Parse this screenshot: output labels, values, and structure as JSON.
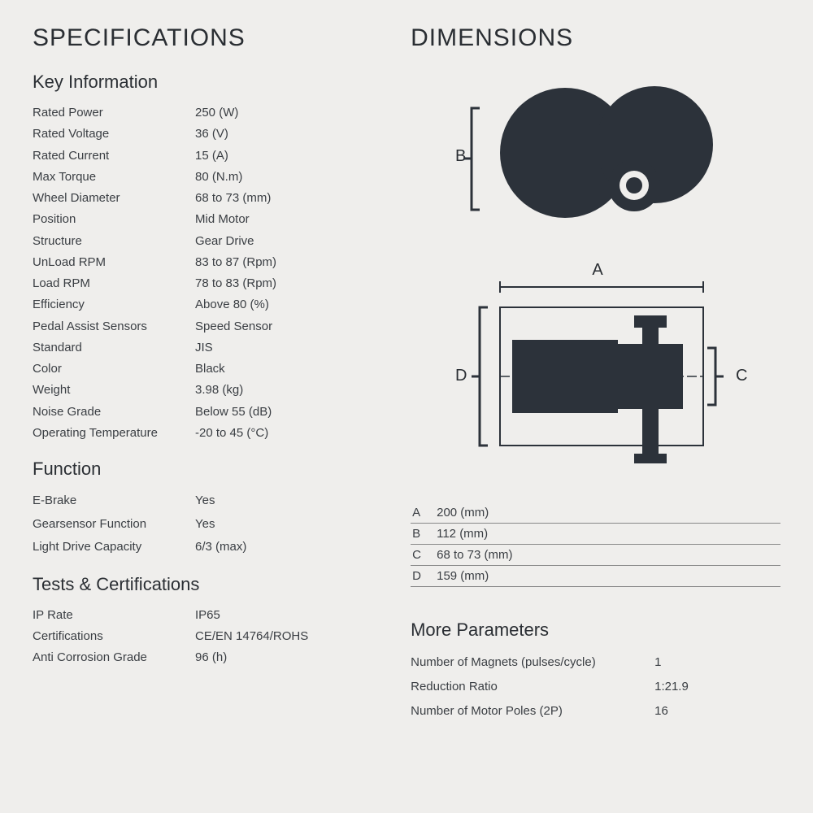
{
  "left": {
    "title": "SPECIFICATIONS",
    "key_info_heading": "Key Information",
    "key_info": [
      {
        "label": "Rated Power",
        "value": "250 (W)"
      },
      {
        "label": "Rated Voltage",
        "value": "36 (V)"
      },
      {
        "label": "Rated Current",
        "value": "15 (A)"
      },
      {
        "label": "Max Torque",
        "value": "80 (N.m)"
      },
      {
        "label": "Wheel Diameter",
        "value": "68 to 73 (mm)"
      },
      {
        "label": "Position",
        "value": "Mid Motor"
      },
      {
        "label": "Structure",
        "value": "Gear Drive"
      },
      {
        "label": "UnLoad RPM",
        "value": "83 to 87 (Rpm)"
      },
      {
        "label": "Load RPM",
        "value": "78 to 83 (Rpm)"
      },
      {
        "label": "Efficiency",
        "value": "Above 80 (%)"
      },
      {
        "label": "Pedal Assist Sensors",
        "value": "Speed Sensor"
      },
      {
        "label": "Standard",
        "value": "JIS"
      },
      {
        "label": "Color",
        "value": "Black"
      },
      {
        "label": "Weight",
        "value": "3.98 (kg)"
      },
      {
        "label": "Noise Grade",
        "value": "Below 55 (dB)"
      },
      {
        "label": "Operating Temperature",
        "value": "-20 to 45 (°C)"
      }
    ],
    "function_heading": "Function",
    "function": [
      {
        "label": "E-Brake",
        "value": "Yes"
      },
      {
        "label": "Gearsensor Function",
        "value": "Yes"
      },
      {
        "label": "Light Drive Capacity",
        "value": "6/3 (max)"
      }
    ],
    "tests_heading": "Tests & Certifications",
    "tests": [
      {
        "label": "IP Rate",
        "value": "IP65"
      },
      {
        "label": "Certifications",
        "value": "CE/EN 14764/ROHS"
      },
      {
        "label": "Anti Corrosion Grade",
        "value": "96 (h)"
      }
    ]
  },
  "right": {
    "title": "DIMENSIONS",
    "dim_table": [
      {
        "k": "A",
        "v": "200 (mm)"
      },
      {
        "k": "B",
        "v": "112 (mm)"
      },
      {
        "k": "C",
        "v": "68 to 73 (mm)"
      },
      {
        "k": "D",
        "v": "159 (mm)"
      }
    ],
    "more_heading": "More Parameters",
    "more": [
      {
        "label": "Number of Magnets (pulses/cycle)",
        "value": "1"
      },
      {
        "label": "Reduction Ratio",
        "value": "1:21.9"
      },
      {
        "label": "Number of Motor Poles (2P)",
        "value": "16"
      }
    ],
    "diagram": {
      "dark": "#2c323a",
      "line": "#3a3e43",
      "bg": "#efeeec",
      "labels": {
        "A": "A",
        "B": "B",
        "C": "C",
        "D": "D"
      }
    }
  }
}
